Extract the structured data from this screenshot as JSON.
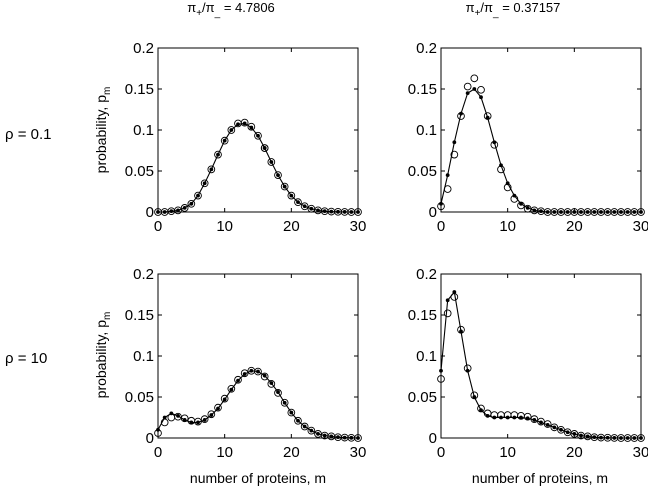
{
  "figure": {
    "columns": [
      {
        "title_prefix": "π",
        "title_sub1": "+",
        "title_mid": "/π",
        "title_sub2": "_",
        "title_suffix": " = 4.7806"
      },
      {
        "title_prefix": "π",
        "title_sub1": "+",
        "title_mid": "/π",
        "title_sub2": "_",
        "title_suffix": " = 0.37157"
      }
    ],
    "rows": [
      {
        "label": "ρ = 0.1"
      },
      {
        "label": "ρ = 10"
      }
    ],
    "ylabel_main": "probability, p",
    "ylabel_sub": "m",
    "xlabel": "number of proteins, m"
  },
  "chart_data": [
    {
      "type": "line",
      "row": 0,
      "col": 0,
      "xlim": [
        0,
        30
      ],
      "ylim": [
        0,
        0.2
      ],
      "xticks": [
        0,
        10,
        20,
        30
      ],
      "yticks": [
        0,
        0.05,
        0.1,
        0.15,
        0.2
      ],
      "ytick_labels": [
        "0",
        "0.05",
        "0.1",
        "0.15",
        "0.2"
      ],
      "x": [
        0,
        1,
        2,
        3,
        4,
        5,
        6,
        7,
        8,
        9,
        10,
        11,
        12,
        13,
        14,
        15,
        16,
        16,
        17,
        18,
        19,
        20,
        21,
        22,
        23,
        24,
        25,
        26,
        27,
        28,
        29,
        30
      ],
      "series": [
        {
          "style": "line-dot",
          "values": [
            0,
            0,
            0.001,
            0.002,
            0.005,
            0.01,
            0.02,
            0.035,
            0.052,
            0.07,
            0.087,
            0.1,
            0.107,
            0.108,
            0.103,
            0.093,
            0.078,
            0.078,
            0.061,
            0.045,
            0.031,
            0.02,
            0.012,
            0.007,
            0.004,
            0.002,
            0.001,
            0.0005,
            0.0002,
            0.0001,
            0,
            0
          ]
        },
        {
          "style": "circle",
          "values": [
            0,
            0,
            0.001,
            0.002,
            0.005,
            0.01,
            0.02,
            0.035,
            0.052,
            0.07,
            0.087,
            0.1,
            0.108,
            0.109,
            0.104,
            0.093,
            0.078,
            0.078,
            0.061,
            0.045,
            0.031,
            0.02,
            0.012,
            0.007,
            0.004,
            0.002,
            0.001,
            0.0005,
            0.0002,
            0.0001,
            0,
            0
          ]
        }
      ]
    },
    {
      "type": "line",
      "row": 0,
      "col": 1,
      "xlim": [
        0,
        30
      ],
      "ylim": [
        0,
        0.2
      ],
      "xticks": [
        0,
        10,
        20,
        30
      ],
      "yticks": [
        0,
        0.05,
        0.1,
        0.15,
        0.2
      ],
      "ytick_labels": [
        "0",
        "0.05",
        "0.1",
        "0.15",
        "0.2"
      ],
      "x": [
        0,
        1,
        2,
        3,
        4,
        5,
        6,
        7,
        8,
        9,
        10,
        11,
        12,
        13,
        14,
        15,
        16,
        17,
        18,
        19,
        20,
        21,
        22,
        23,
        24,
        25,
        26,
        27,
        28,
        29,
        30
      ],
      "series": [
        {
          "style": "line-dot",
          "values": [
            0.01,
            0.045,
            0.085,
            0.12,
            0.145,
            0.15,
            0.14,
            0.115,
            0.085,
            0.057,
            0.035,
            0.02,
            0.01,
            0.005,
            0.002,
            0.001,
            0,
            0,
            0,
            0,
            0,
            0,
            0,
            0,
            0,
            0,
            0,
            0,
            0,
            0,
            0
          ]
        },
        {
          "style": "circle",
          "values": [
            0.007,
            0.028,
            0.07,
            0.117,
            0.153,
            0.163,
            0.149,
            0.117,
            0.082,
            0.052,
            0.03,
            0.016,
            0.008,
            0.004,
            0.002,
            0.001,
            0,
            0,
            0,
            0,
            0,
            0,
            0,
            0,
            0,
            0,
            0,
            0,
            0,
            0,
            0
          ]
        }
      ]
    },
    {
      "type": "line",
      "row": 1,
      "col": 0,
      "xlim": [
        0,
        30
      ],
      "ylim": [
        0,
        0.2
      ],
      "xticks": [
        0,
        10,
        20,
        30
      ],
      "yticks": [
        0,
        0.05,
        0.1,
        0.15,
        0.2
      ],
      "ytick_labels": [
        "0",
        "0.05",
        "0.1",
        "0.15",
        "0.2"
      ],
      "x": [
        0,
        1,
        2,
        3,
        4,
        5,
        6,
        7,
        8,
        9,
        10,
        11,
        12,
        13,
        14,
        15,
        16,
        17,
        18,
        19,
        20,
        21,
        22,
        23,
        24,
        25,
        26,
        27,
        28,
        29,
        30
      ],
      "series": [
        {
          "style": "line-dot",
          "values": [
            0.01,
            0.025,
            0.03,
            0.027,
            0.022,
            0.019,
            0.019,
            0.022,
            0.028,
            0.036,
            0.047,
            0.059,
            0.07,
            0.078,
            0.082,
            0.081,
            0.076,
            0.067,
            0.056,
            0.043,
            0.031,
            0.021,
            0.014,
            0.009,
            0.005,
            0.003,
            0.002,
            0.001,
            0.0005,
            0.0002,
            0
          ]
        },
        {
          "style": "circle",
          "values": [
            0.006,
            0.019,
            0.025,
            0.026,
            0.024,
            0.021,
            0.02,
            0.023,
            0.029,
            0.037,
            0.048,
            0.06,
            0.071,
            0.079,
            0.082,
            0.081,
            0.075,
            0.066,
            0.055,
            0.043,
            0.031,
            0.021,
            0.014,
            0.009,
            0.005,
            0.003,
            0.002,
            0.001,
            0.0005,
            0.0002,
            0
          ]
        }
      ]
    },
    {
      "type": "line",
      "row": 1,
      "col": 1,
      "xlim": [
        0,
        30
      ],
      "ylim": [
        0,
        0.2
      ],
      "xticks": [
        0,
        10,
        20,
        30
      ],
      "yticks": [
        0,
        0.05,
        0.1,
        0.15,
        0.2
      ],
      "ytick_labels": [
        "0",
        "0.05",
        "0.1",
        "0.15",
        "0.2"
      ],
      "x": [
        0,
        1,
        2,
        3,
        4,
        5,
        6,
        7,
        8,
        9,
        10,
        11,
        12,
        13,
        14,
        15,
        16,
        17,
        18,
        19,
        20,
        21,
        22,
        23,
        24,
        25,
        26,
        27,
        28,
        29,
        30
      ],
      "series": [
        {
          "style": "line-dot",
          "values": [
            0.082,
            0.168,
            0.178,
            0.13,
            0.082,
            0.05,
            0.034,
            0.027,
            0.025,
            0.025,
            0.025,
            0.025,
            0.025,
            0.024,
            0.022,
            0.019,
            0.016,
            0.013,
            0.01,
            0.007,
            0.005,
            0.003,
            0.002,
            0.001,
            0.0005,
            0.0003,
            0.0001,
            0,
            0,
            0,
            0
          ]
        },
        {
          "style": "circle",
          "values": [
            0.072,
            0.152,
            0.172,
            0.132,
            0.085,
            0.052,
            0.036,
            0.03,
            0.028,
            0.028,
            0.028,
            0.028,
            0.027,
            0.026,
            0.023,
            0.02,
            0.017,
            0.013,
            0.01,
            0.007,
            0.005,
            0.003,
            0.002,
            0.001,
            0.0005,
            0.0003,
            0.0001,
            0,
            0,
            0,
            0
          ]
        }
      ]
    }
  ]
}
